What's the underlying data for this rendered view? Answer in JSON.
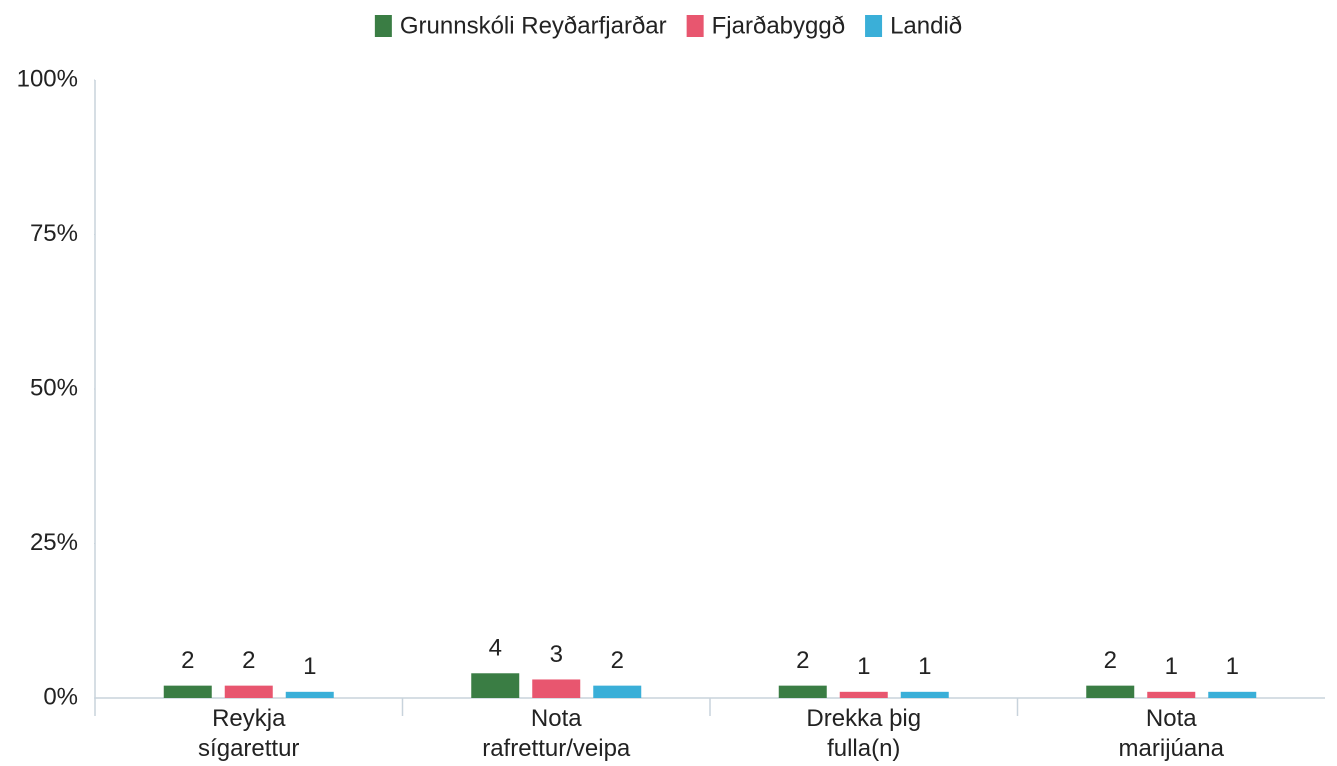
{
  "chart_data": {
    "type": "bar",
    "categories": [
      "Reykja\nsígarettur",
      "Nota\nrafrettur/veipa",
      "Drekka þig\nfulla(n)",
      "Nota\nmarijúana"
    ],
    "series": [
      {
        "name": "Grunnskóli Reyðarfjarðar",
        "color": "#3a7d44",
        "values": [
          2,
          4,
          2,
          2
        ]
      },
      {
        "name": "Fjarðabyggð",
        "color": "#e8566f",
        "values": [
          2,
          3,
          1,
          1
        ]
      },
      {
        "name": "Landið",
        "color": "#3aafd8",
        "values": [
          1,
          2,
          1,
          1
        ]
      }
    ],
    "ylim": [
      0,
      100
    ],
    "yticks": [
      {
        "value": 0,
        "label": "0%"
      },
      {
        "value": 25,
        "label": "25%"
      },
      {
        "value": 50,
        "label": "50%"
      },
      {
        "value": 75,
        "label": "75%"
      },
      {
        "value": 100,
        "label": "100%"
      }
    ],
    "legend": "top"
  }
}
